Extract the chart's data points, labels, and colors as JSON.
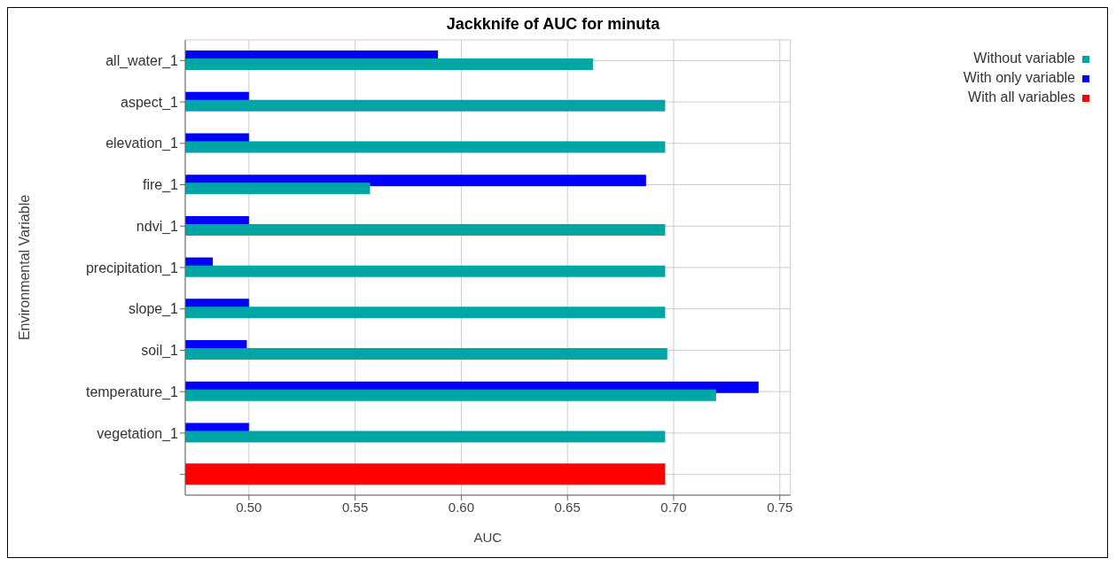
{
  "chart_data": {
    "type": "bar",
    "orientation": "horizontal",
    "title": "Jackknife of AUC for minuta",
    "xlabel": "AUC",
    "ylabel": "Environmental Variable",
    "categories": [
      "all_water_1",
      "aspect_1",
      "elevation_1",
      "fire_1",
      "ndvi_1",
      "precipitation_1",
      "slope_1",
      "soil_1",
      "temperature_1",
      "vegetation_1",
      null
    ],
    "series": [
      {
        "name": "Without variable",
        "color": "#00a6a6",
        "values": [
          0.662,
          0.696,
          0.696,
          0.557,
          0.696,
          0.696,
          0.696,
          0.697,
          0.72,
          0.696,
          null
        ]
      },
      {
        "name": "With only variable",
        "color": "#0000ff",
        "values": [
          0.589,
          0.5,
          0.5,
          0.687,
          0.5,
          0.483,
          0.5,
          0.499,
          0.74,
          0.5,
          null
        ]
      },
      {
        "name": "With all variables",
        "color": "#ff0000",
        "values": [
          null,
          null,
          null,
          null,
          null,
          null,
          null,
          null,
          null,
          null,
          0.696
        ]
      }
    ],
    "xlim": [
      0.47,
      0.755
    ],
    "xticks": [
      {
        "value": 0.5,
        "label": "0.50"
      },
      0.55,
      {
        "value": 0.6,
        "label": "0.60"
      },
      0.65,
      {
        "value": 0.7,
        "label": "0.70"
      },
      0.75
    ],
    "grid": true,
    "legend": "top right"
  }
}
